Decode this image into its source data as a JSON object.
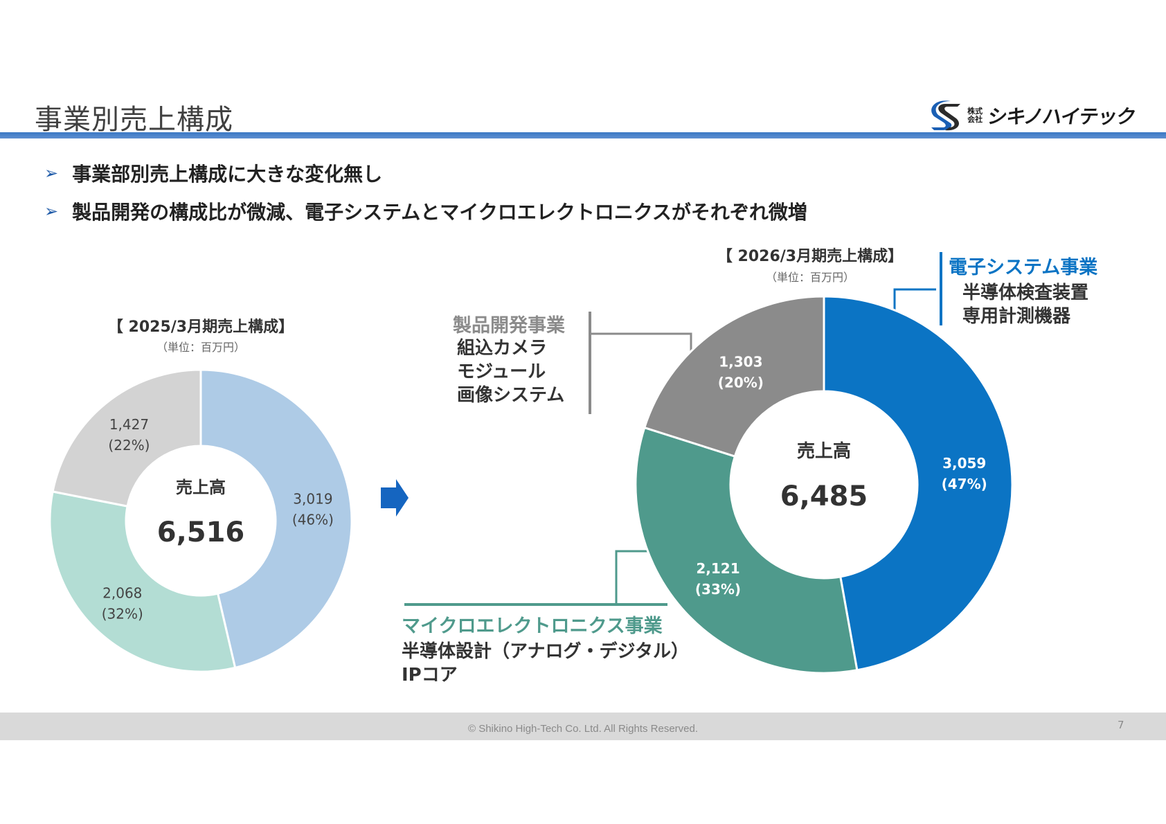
{
  "header": {
    "title": "事業別売上構成",
    "logo_small": "株式会社",
    "logo_text": "シキノハイテック"
  },
  "bullets": [
    "事業部別売上構成に大きな変化無し",
    "製品開発の構成比が微減、電子システムとマイクロエレクトロニクスがそれぞれ微増"
  ],
  "colors": {
    "electronic_2025": "#aecbe6",
    "micro_2025": "#b3ddd4",
    "product_2025": "#d3d3d3",
    "electronic_2026": "#0b74c4",
    "micro_2026": "#4f9a8c",
    "product_2026": "#8b8b8b",
    "arrow": "#1565c0"
  },
  "chart_data": [
    {
      "type": "pie",
      "title": "【 2025/3月期売上構成】",
      "unit": "（単位：百万円）",
      "center_label": "売上高",
      "total": "6,516",
      "slices": [
        {
          "value": 3019,
          "value_label": "3,019",
          "percent_label": "(46%)"
        },
        {
          "value": 2068,
          "value_label": "2,068",
          "percent_label": "(32%)"
        },
        {
          "value": 1427,
          "value_label": "1,427",
          "percent_label": "(22%)"
        }
      ]
    },
    {
      "type": "pie",
      "title": "【 2026/3月期売上構成】",
      "unit": "（単位：百万円）",
      "center_label": "売上高",
      "total": "6,485",
      "slices": [
        {
          "value": 3059,
          "value_label": "3,059",
          "percent_label": "(47%)"
        },
        {
          "value": 2121,
          "value_label": "2,121",
          "percent_label": "(33%)"
        },
        {
          "value": 1303,
          "value_label": "1,303",
          "percent_label": "(20%)"
        }
      ]
    }
  ],
  "segments": {
    "electronic": {
      "name": "電子システム事業",
      "desc": [
        "半導体検査装置",
        "専用計測機器"
      ]
    },
    "product": {
      "name": "製品開発事業",
      "desc": [
        "組込カメラ",
        "モジュール",
        "画像システム"
      ]
    },
    "micro": {
      "name": "マイクロエレクトロニクス事業",
      "desc": [
        "半導体設計（アナログ・デジタル）",
        "IPコア"
      ]
    }
  },
  "footer": {
    "copyright": "© Shikino High-Tech Co. Ltd. All Rights Reserved.",
    "page": "7"
  }
}
